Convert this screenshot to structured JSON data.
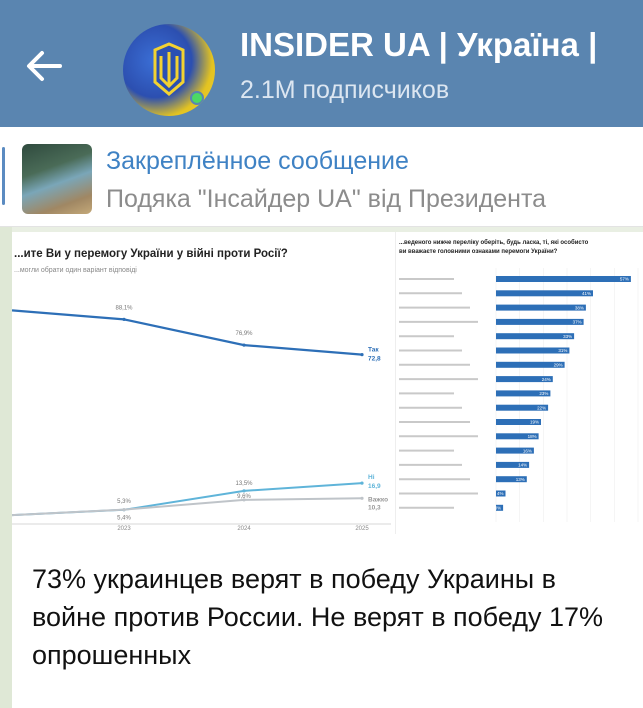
{
  "header": {
    "channel_title": "INSIDER UA | Україна |",
    "subscribers": "2.1M подписчиков",
    "back_icon": "arrow-left-icon",
    "avatar_icon": "trident-icon"
  },
  "pinned": {
    "title": "Закреплённое сообщение",
    "preview": "Подяка \"Інсайдер UA\" від Президента"
  },
  "post": {
    "caption": "73% украинцев верят в победу Украины в войне против России. Не верят в победу 17% опрошенных"
  },
  "chart_data": [
    {
      "type": "line",
      "title": "...ите Ви у перемогу України у війні проти Росії?",
      "subtitle": "...могли обрати один варіант відповіді",
      "x": [
        "2023",
        "2024",
        "2025"
      ],
      "series": [
        {
          "name": "Так",
          "values": [
            88.1,
            76.9,
            72.8
          ]
        },
        {
          "name": "Ні",
          "values": [
            5.3,
            13.5,
            16.9
          ]
        },
        {
          "name": "Важко...",
          "values": [
            5.4,
            9.6,
            10.3
          ]
        }
      ],
      "end_labels": [
        "Так",
        "72,8",
        "Ні",
        "16,9",
        "Важко",
        "10,3"
      ],
      "point_labels": [
        "88,1%",
        "76,9%",
        "5,3%",
        "13,5%",
        "9,6%",
        "5,4%"
      ],
      "ylim": [
        0,
        100
      ]
    },
    {
      "type": "bar",
      "title": "...веденого нижче переліку оберіть, будь ласка, ті, які особисто ви вважаєте головними ознаками перемоги України?",
      "categories_count": 17,
      "values": [
        57,
        41,
        38,
        37,
        33,
        31,
        29,
        24,
        23,
        22,
        19,
        18,
        16,
        14,
        13,
        4,
        3
      ],
      "value_labels": [
        "57%",
        "41%",
        "38%",
        "37%",
        "33%",
        "31%",
        "29%",
        "24%",
        "23%",
        "22%",
        "19%",
        "18%",
        "16%",
        "14%",
        "13%",
        "4%",
        "3%"
      ],
      "bar_color": "#2d6fb7",
      "ylim": [
        0,
        100
      ]
    }
  ]
}
